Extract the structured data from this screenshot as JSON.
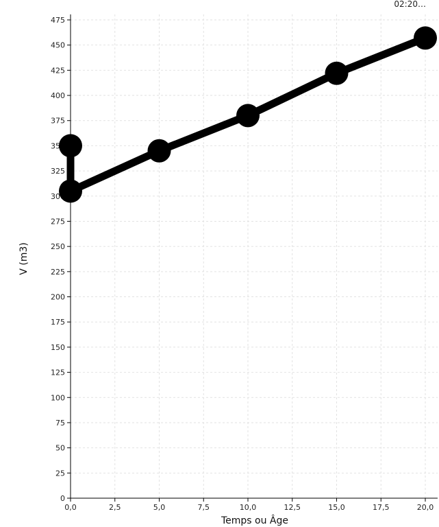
{
  "chart_data": {
    "type": "line",
    "title": "",
    "corner_text": "02:20…",
    "xlabel": "Temps ou Âge",
    "ylabel": "V (m3)",
    "xlim": [
      0,
      20
    ],
    "ylim": [
      0,
      475
    ],
    "x_ticks": [
      0,
      2.5,
      5,
      7.5,
      10,
      12.5,
      15,
      17.5,
      20
    ],
    "x_tick_labels": [
      "0,0",
      "2,5",
      "5,0",
      "7,5",
      "10,0",
      "12,5",
      "15,0",
      "17,5",
      "20,0"
    ],
    "y_ticks": [
      0,
      25,
      50,
      75,
      100,
      125,
      150,
      175,
      200,
      225,
      250,
      275,
      300,
      325,
      350,
      375,
      400,
      425,
      450,
      475
    ],
    "y_tick_labels": [
      "0",
      "25",
      "50",
      "75",
      "100",
      "125",
      "150",
      "175",
      "200",
      "225",
      "250",
      "275",
      "300",
      "325",
      "350",
      "375",
      "400",
      "425",
      "450",
      "475"
    ],
    "grid": true,
    "series": [
      {
        "color": "#000000",
        "points": [
          {
            "x": 0,
            "y": 350
          },
          {
            "x": 0,
            "y": 305
          },
          {
            "x": 5,
            "y": 345
          },
          {
            "x": 10,
            "y": 380
          },
          {
            "x": 15,
            "y": 422
          },
          {
            "x": 20,
            "y": 457
          }
        ]
      }
    ]
  }
}
